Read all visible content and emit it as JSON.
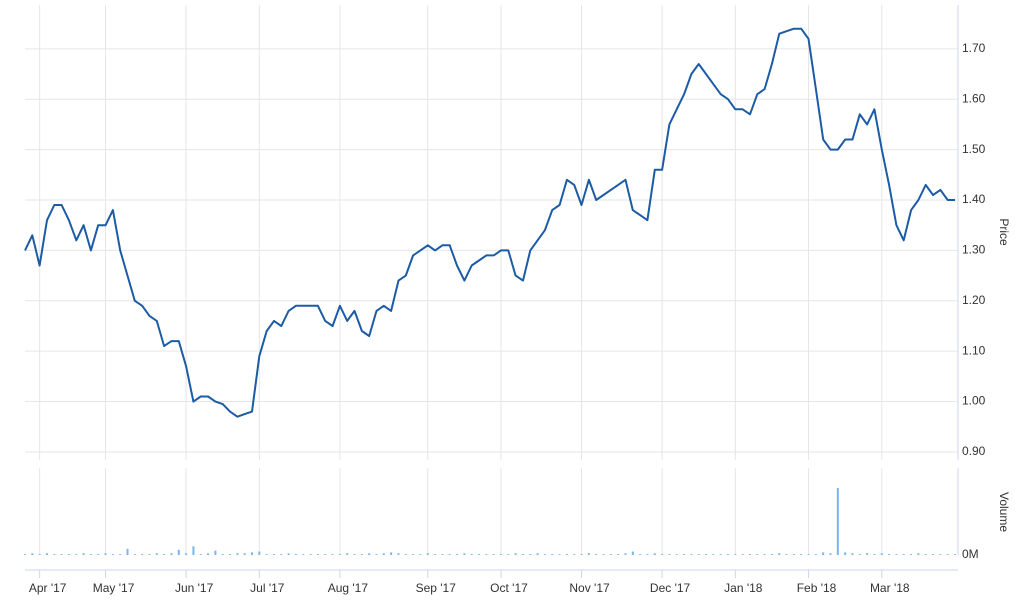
{
  "chart_data": [
    {
      "type": "line",
      "axis_title": "Price",
      "color": "#1c5ba5",
      "grid": true,
      "ylim": [
        0.884,
        1.787
      ],
      "yticks": [
        {
          "value": 0.9,
          "label": "0.90"
        },
        {
          "value": 1.0,
          "label": "1.00"
        },
        {
          "value": 1.1,
          "label": "1.10"
        },
        {
          "value": 1.2,
          "label": "1.20"
        },
        {
          "value": 1.3,
          "label": "1.30"
        },
        {
          "value": 1.4,
          "label": "1.40"
        },
        {
          "value": 1.5,
          "label": "1.50"
        },
        {
          "value": 1.6,
          "label": "1.60"
        },
        {
          "value": 1.7,
          "label": "1.70"
        }
      ],
      "values": [
        1.3,
        1.33,
        1.27,
        1.36,
        1.39,
        1.39,
        1.36,
        1.32,
        1.35,
        1.3,
        1.35,
        1.35,
        1.38,
        1.3,
        1.25,
        1.2,
        1.19,
        1.17,
        1.16,
        1.11,
        1.12,
        1.12,
        1.07,
        1.0,
        1.01,
        1.01,
        1.0,
        0.995,
        0.98,
        0.97,
        0.975,
        0.98,
        1.09,
        1.14,
        1.16,
        1.15,
        1.18,
        1.19,
        1.19,
        1.19,
        1.19,
        1.16,
        1.15,
        1.19,
        1.16,
        1.18,
        1.14,
        1.13,
        1.18,
        1.19,
        1.18,
        1.24,
        1.25,
        1.29,
        1.3,
        1.31,
        1.3,
        1.31,
        1.31,
        1.27,
        1.24,
        1.27,
        1.28,
        1.29,
        1.29,
        1.3,
        1.3,
        1.25,
        1.24,
        1.3,
        1.32,
        1.34,
        1.38,
        1.39,
        1.44,
        1.43,
        1.39,
        1.44,
        1.4,
        1.41,
        1.42,
        1.43,
        1.44,
        1.38,
        1.37,
        1.36,
        1.46,
        1.46,
        1.55,
        1.58,
        1.61,
        1.65,
        1.67,
        1.65,
        1.63,
        1.61,
        1.6,
        1.58,
        1.58,
        1.57,
        1.61,
        1.62,
        1.67,
        1.73,
        1.735,
        1.74,
        1.74,
        1.72,
        1.62,
        1.52,
        1.5,
        1.5,
        1.52,
        1.52,
        1.57,
        1.55,
        1.58,
        1.5,
        1.43,
        1.35,
        1.32,
        1.38,
        1.4,
        1.43,
        1.41,
        1.42,
        1.4,
        1.4
      ]
    },
    {
      "type": "bar",
      "axis_title": "Volume",
      "color": "#7cb5ec",
      "ylim": [
        0,
        1
      ],
      "yticks": [
        {
          "value": 0,
          "label": "0M"
        }
      ],
      "categories": [
        null,
        null,
        "Apr '17",
        null,
        null,
        null,
        null,
        null,
        null,
        null,
        null,
        "May '17",
        null,
        null,
        null,
        null,
        null,
        null,
        null,
        null,
        null,
        null,
        "Jun '17",
        null,
        null,
        null,
        null,
        null,
        null,
        null,
        null,
        null,
        "Jul '17",
        null,
        null,
        null,
        null,
        null,
        null,
        null,
        null,
        null,
        null,
        "Aug '17",
        null,
        null,
        null,
        null,
        null,
        null,
        null,
        null,
        null,
        null,
        null,
        "Sep '17",
        null,
        null,
        null,
        null,
        null,
        null,
        null,
        null,
        null,
        "Oct '17",
        null,
        null,
        null,
        null,
        null,
        null,
        null,
        null,
        null,
        null,
        "Nov '17",
        null,
        null,
        null,
        null,
        null,
        null,
        null,
        null,
        null,
        null,
        "Dec '17",
        null,
        null,
        null,
        null,
        null,
        null,
        null,
        null,
        null,
        "Jan '18",
        null,
        null,
        null,
        null,
        null,
        null,
        null,
        null,
        null,
        "Feb '18",
        null,
        null,
        null,
        null,
        null,
        null,
        null,
        null,
        null,
        "Mar '18",
        null,
        null,
        null,
        null,
        null,
        null,
        null,
        null,
        null,
        null
      ],
      "values": [
        0.01,
        0.02,
        0.01,
        0.02,
        0.01,
        0.01,
        0.01,
        0.01,
        0.02,
        0.01,
        0.01,
        0.02,
        0.01,
        0.01,
        0.07,
        0.01,
        0.01,
        0.01,
        0.02,
        0.01,
        0.02,
        0.06,
        0.02,
        0.1,
        0.01,
        0.02,
        0.05,
        0.01,
        0.01,
        0.02,
        0.02,
        0.03,
        0.04,
        0.01,
        0.01,
        0.01,
        0.02,
        0.01,
        0.01,
        0.01,
        0.01,
        0.01,
        0.01,
        0.01,
        0.02,
        0.01,
        0.01,
        0.02,
        0.01,
        0.02,
        0.03,
        0.02,
        0.01,
        0.01,
        0.01,
        0.02,
        0.01,
        0.01,
        0.01,
        0.01,
        0.02,
        0.01,
        0.01,
        0.01,
        0.01,
        0.01,
        0.01,
        0.02,
        0.01,
        0.01,
        0.02,
        0.01,
        0.01,
        0.01,
        0.01,
        0.01,
        0.01,
        0.02,
        0.01,
        0.01,
        0.01,
        0.01,
        0.02,
        0.04,
        0.01,
        0.01,
        0.02,
        0.01,
        0.01,
        0.01,
        0.01,
        0.01,
        0.01,
        0.01,
        0.01,
        0.01,
        0.01,
        0.01,
        0.01,
        0.01,
        0.01,
        0.01,
        0.01,
        0.02,
        0.01,
        0.01,
        0.01,
        0.01,
        0.01,
        0.03,
        0.02,
        0.77,
        0.03,
        0.02,
        0.01,
        0.02,
        0.01,
        0.02,
        0.01,
        0.01,
        0.01,
        0.01,
        0.02,
        0.01,
        0.01,
        0.01,
        0.01,
        0.01
      ]
    }
  ]
}
